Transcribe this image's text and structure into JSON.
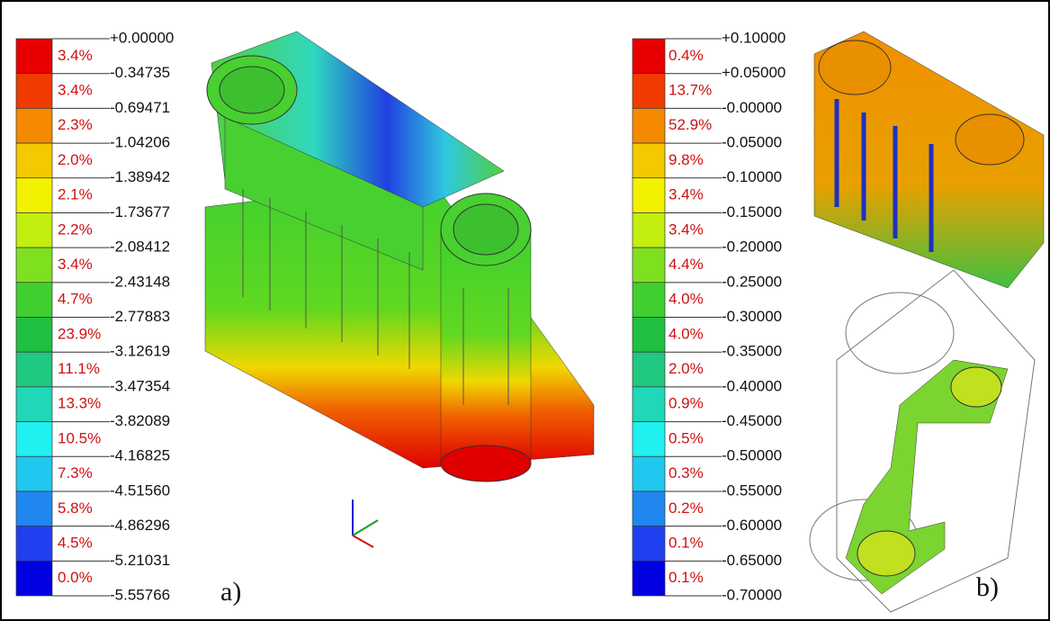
{
  "panel_a": {
    "label": "a)",
    "ticks": [
      "+0.00000",
      "-0.34735",
      "-0.69471",
      "-1.04206",
      "-1.38942",
      "-1.73677",
      "-2.08412",
      "-2.43148",
      "-2.77883",
      "-3.12619",
      "-3.47354",
      "-3.82089",
      "-4.16825",
      "-4.51560",
      "-4.86296",
      "-5.21031",
      "-5.55766"
    ],
    "percents": [
      "3.4%",
      "3.4%",
      "2.3%",
      "2.0%",
      "2.1%",
      "2.2%",
      "3.4%",
      "4.7%",
      "23.9%",
      "11.1%",
      "13.3%",
      "10.5%",
      "7.3%",
      "5.8%",
      "4.5%",
      "0.0%"
    ]
  },
  "panel_b": {
    "label": "b)",
    "ticks": [
      "+0.10000",
      "+0.05000",
      "-0.00000",
      "-0.05000",
      "-0.10000",
      "-0.15000",
      "-0.20000",
      "-0.25000",
      "-0.30000",
      "-0.35000",
      "-0.40000",
      "-0.45000",
      "-0.50000",
      "-0.55000",
      "-0.60000",
      "-0.65000",
      "-0.70000"
    ],
    "percents": [
      "0.4%",
      "13.7%",
      "52.9%",
      "9.8%",
      "3.4%",
      "3.4%",
      "4.4%",
      "4.0%",
      "4.0%",
      "2.0%",
      "0.9%",
      "0.5%",
      "0.3%",
      "0.2%",
      "0.1%",
      "0.1%"
    ]
  },
  "colors": [
    "#e80000",
    "#f03a00",
    "#f58a00",
    "#f5c800",
    "#f2f200",
    "#c2ee10",
    "#7fe020",
    "#3fd030",
    "#20c040",
    "#20c880",
    "#20d8b8",
    "#20f0f0",
    "#20c8f0",
    "#2088f0",
    "#2040f0",
    "#0000e0"
  ]
}
